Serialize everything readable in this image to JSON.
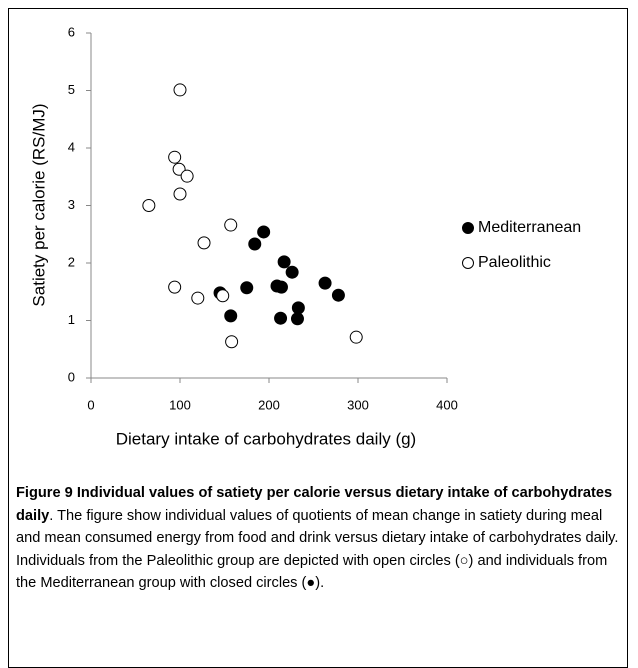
{
  "chart_data": {
    "type": "scatter",
    "xlabel": "Dietary intake of carbohydrates daily (g)",
    "ylabel": "Satiety per calorie (RS/MJ)",
    "xlim": [
      0,
      400
    ],
    "xticks": [
      0,
      100,
      200,
      300,
      400
    ],
    "ylim": [
      0,
      6
    ],
    "yticks": [
      0,
      1,
      2,
      3,
      4,
      5,
      6
    ],
    "legend": "right",
    "series": [
      {
        "name": "Mediterranean",
        "color": "#000000",
        "marker": "filled",
        "x": [
          145,
          157,
          175,
          184,
          194,
          209,
          213,
          214,
          217,
          226,
          232,
          233,
          263,
          278
        ],
        "values": [
          1.48,
          1.08,
          1.57,
          2.33,
          2.54,
          1.6,
          1.04,
          1.58,
          2.02,
          1.84,
          1.03,
          1.22,
          1.65,
          1.44
        ]
      },
      {
        "name": "Paleolithic",
        "color": "#000000",
        "marker": "open",
        "x": [
          100,
          94,
          99,
          108,
          100,
          65,
          127,
          157,
          94,
          120,
          148,
          158,
          298
        ],
        "values": [
          5.01,
          3.84,
          3.63,
          3.51,
          3.2,
          3.0,
          2.35,
          2.66,
          1.58,
          1.39,
          1.43,
          0.63,
          0.71
        ]
      }
    ]
  },
  "caption": {
    "title": "Figure 9 Individual values of satiety per calorie versus dietary intake of carbohydrates daily",
    "text": ". The figure show individual values of quotients of mean change in satiety during meal and mean consumed energy from food and drink versus dietary intake of carbohydrates daily. Individuals from the Paleolithic group are depicted with open circles (○) and individuals from the Mediterranean group with closed circles (●)."
  }
}
